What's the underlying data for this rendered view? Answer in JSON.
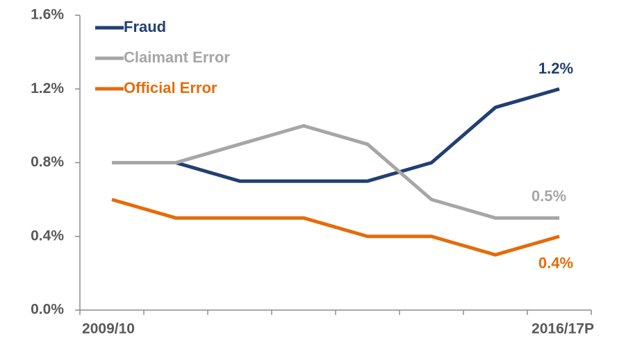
{
  "chart_data": {
    "type": "line",
    "categories": [
      "2009/10",
      null,
      null,
      null,
      null,
      null,
      null,
      "2016/17P"
    ],
    "series": [
      {
        "name": "Fraud",
        "color": "#203f72",
        "values": [
          0.8,
          0.8,
          0.7,
          0.7,
          0.7,
          0.8,
          1.1,
          1.2
        ],
        "value_labels": [
          null,
          null,
          null,
          null,
          null,
          null,
          null,
          "1.2%"
        ]
      },
      {
        "name": "Claimant Error",
        "color": "#a6a6a6",
        "values": [
          0.8,
          0.8,
          0.9,
          1.0,
          0.9,
          0.6,
          0.5,
          0.5
        ],
        "value_labels": [
          null,
          null,
          null,
          null,
          null,
          null,
          null,
          "0.5%"
        ]
      },
      {
        "name": "Official Error",
        "color": "#e46c0a",
        "values": [
          0.6,
          0.5,
          0.5,
          0.5,
          0.4,
          0.4,
          0.3,
          0.4
        ],
        "value_labels": [
          null,
          null,
          null,
          null,
          null,
          null,
          null,
          "0.4%"
        ]
      }
    ],
    "ylim": [
      0,
      1.6
    ],
    "yticks": [
      {
        "value": 0,
        "label": "0.0%"
      },
      {
        "value": 0.4,
        "label": "0.4%"
      },
      {
        "value": 0.8,
        "label": "0.8%"
      },
      {
        "value": 1.2,
        "label": "1.2%"
      },
      {
        "value": 1.6,
        "label": "1.6%"
      }
    ],
    "grid": false,
    "legend": "upper left"
  }
}
